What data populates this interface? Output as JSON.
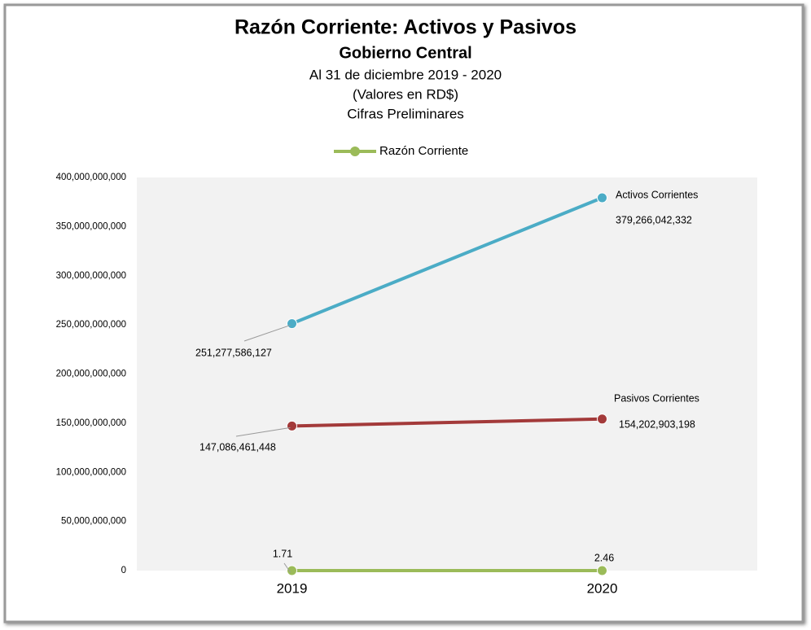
{
  "chart_data": {
    "type": "line",
    "title": "Razón Corriente:  Activos y Pasivos",
    "subtitle": "Gobierno Central",
    "notes": [
      "Al 31 de diciembre 2019 - 2020",
      "(Valores en RD$)",
      "Cifras Preliminares"
    ],
    "categories": [
      "2019",
      "2020"
    ],
    "series": [
      {
        "name": "Activos Corrientes",
        "color": "#4bacc6",
        "legend": false,
        "values": [
          251277586127,
          379266042332
        ],
        "value_labels": [
          "251,277,586,127",
          "379,266,042,332"
        ]
      },
      {
        "name": "Pasivos Corrientes",
        "color": "#a33a3a",
        "legend": false,
        "values": [
          147086461448,
          154202903198
        ],
        "value_labels": [
          "147,086,461,448",
          "154,202,903,198"
        ]
      },
      {
        "name": "Razón Corriente",
        "color": "#9bbb59",
        "legend": true,
        "values": [
          1.71,
          2.46
        ]
      }
    ],
    "ylim": [
      0,
      400000000000
    ],
    "yticks": [
      0,
      {
        "value": 50000000000,
        "label": "50,000,000,000"
      },
      {
        "value": 100000000000,
        "label": "100,000,000,000"
      },
      {
        "value": 150000000000,
        "label": "150,000,000,000"
      },
      {
        "value": 200000000000,
        "label": "200,000,000,000"
      },
      {
        "value": 250000000000,
        "label": "250,000,000,000"
      },
      {
        "value": 300000000000,
        "label": "300,000,000,000"
      },
      {
        "value": 350000000000,
        "label": "350,000,000,000"
      },
      {
        "value": 400000000000,
        "label": "400,000,000,000"
      }
    ],
    "grid": false,
    "legend_position": "top"
  }
}
